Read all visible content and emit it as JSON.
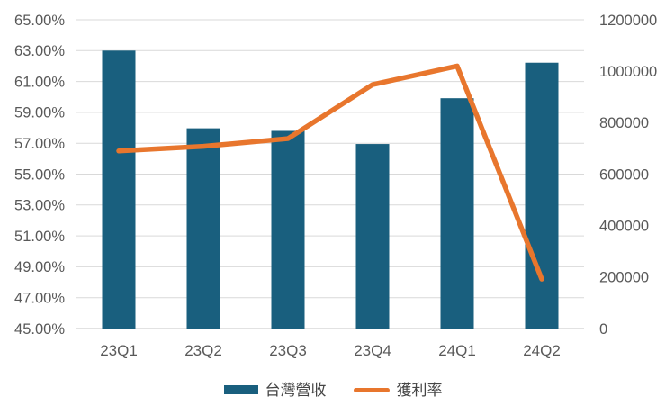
{
  "chart_data": {
    "type": "combo",
    "title": "",
    "categories": [
      "23Q1",
      "23Q2",
      "23Q3",
      "23Q4",
      "24Q1",
      "24Q2"
    ],
    "series": [
      {
        "name": "台灣營收",
        "type": "bar",
        "axis": "right",
        "color": "#195F7E",
        "values": [
          1080000,
          778000,
          768000,
          717000,
          895000,
          1033000
        ]
      },
      {
        "name": "獲利率",
        "type": "line",
        "axis": "left",
        "color": "#E8762D",
        "values": [
          56.5,
          56.8,
          57.3,
          60.8,
          62.0,
          48.2
        ]
      }
    ],
    "left_axis": {
      "min": 45,
      "max": 65,
      "step": 2,
      "ticks": [
        "65.00%",
        "63.00%",
        "61.00%",
        "59.00%",
        "57.00%",
        "55.00%",
        "53.00%",
        "51.00%",
        "49.00%",
        "47.00%",
        "45.00%"
      ]
    },
    "right_axis": {
      "min": 0,
      "max": 1200000,
      "step": 200000,
      "ticks": [
        "1200000",
        "1000000",
        "800000",
        "600000",
        "400000",
        "200000",
        "0"
      ]
    },
    "grid": true,
    "legend_position": "bottom",
    "colors": {
      "gridline": "#D9D9D9",
      "axis_line": "#C6C6C6",
      "tick_label": "#595959",
      "legend_text": "#454545",
      "background": "#FFFFFF"
    }
  }
}
